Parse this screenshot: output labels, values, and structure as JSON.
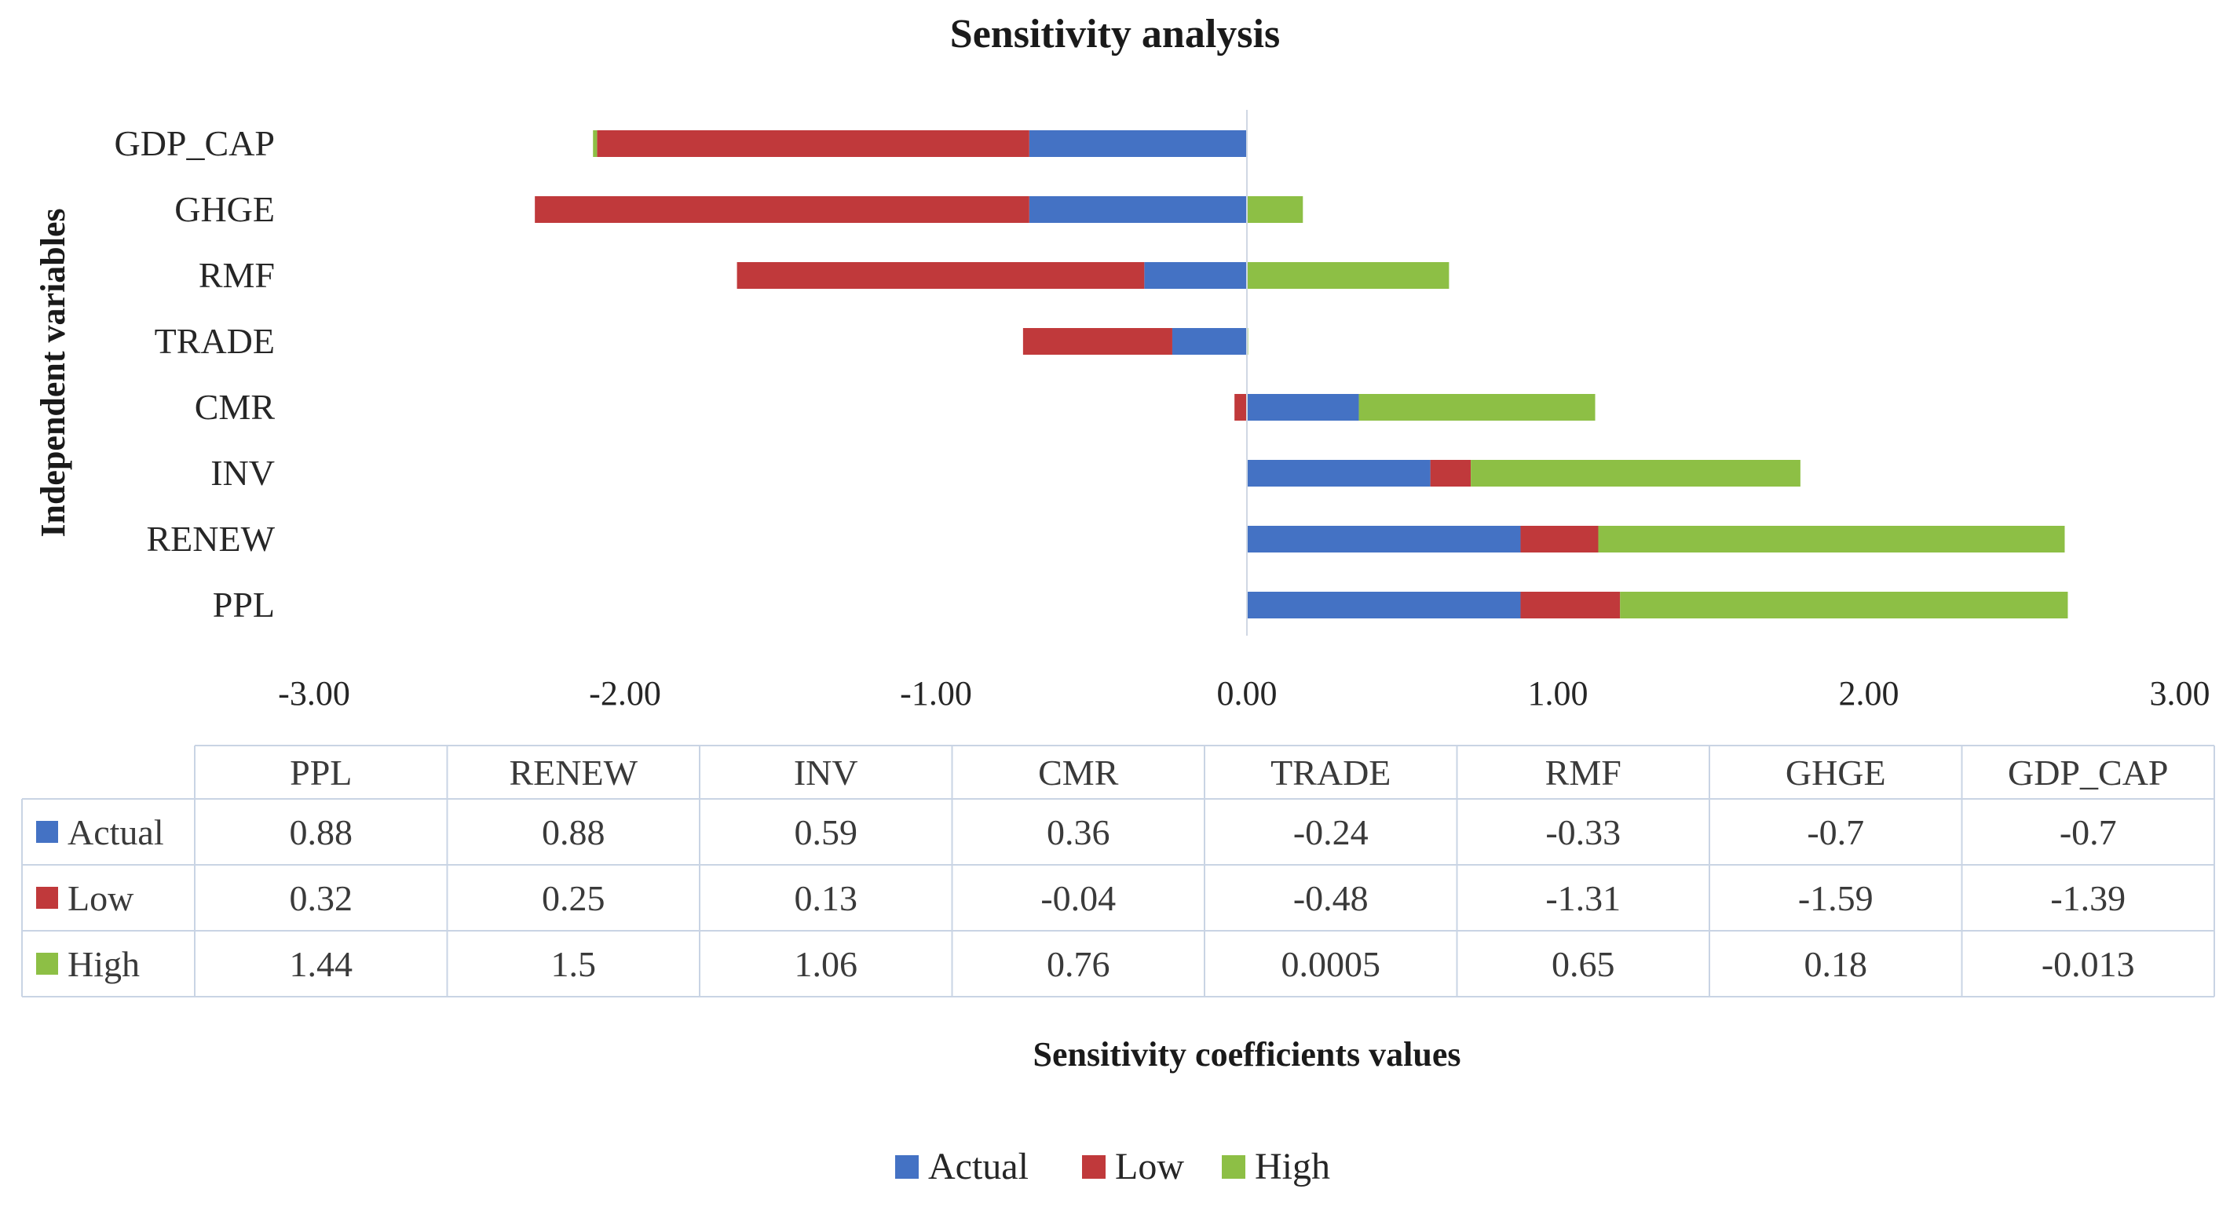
{
  "chart_data": {
    "type": "bar",
    "orientation": "horizontal",
    "stacked": true,
    "title": "Sensitivity analysis",
    "xlabel": "Sensitivity coefficients values",
    "ylabel": "Independent variables",
    "xlim": [
      -3,
      3
    ],
    "x_ticks": [
      "-3.00",
      "-2.00",
      "-1.00",
      "0.00",
      "1.00",
      "2.00",
      "3.00"
    ],
    "grid": false,
    "legend_position": "bottom",
    "categories": [
      "PPL",
      "RENEW",
      "INV",
      "CMR",
      "TRADE",
      "RMF",
      "GHGE",
      "GDP_CAP"
    ],
    "series": [
      {
        "name": "Actual",
        "color": "#4472C4",
        "values": [
          0.88,
          0.88,
          0.59,
          0.36,
          -0.24,
          -0.33,
          -0.7,
          -0.7
        ],
        "labels": [
          "0.88",
          "0.88",
          "0.59",
          "0.36",
          "-0.24",
          "-0.33",
          "-0.7",
          "-0.7"
        ]
      },
      {
        "name": "Low",
        "color": "#C0393B",
        "values": [
          0.32,
          0.25,
          0.13,
          -0.04,
          -0.48,
          -1.31,
          -1.59,
          -1.39
        ],
        "labels": [
          "0.32",
          "0.25",
          "0.13",
          "-0.04",
          "-0.48",
          "-1.31",
          "-1.59",
          "-1.39"
        ]
      },
      {
        "name": "High",
        "color": "#8DBF45",
        "values": [
          1.44,
          1.5,
          1.06,
          0.76,
          0.0005,
          0.65,
          0.18,
          -0.013
        ],
        "labels": [
          "1.44",
          "1.5",
          "1.06",
          "0.76",
          "0.0005",
          "0.65",
          "0.18",
          "-0.013"
        ]
      }
    ]
  }
}
